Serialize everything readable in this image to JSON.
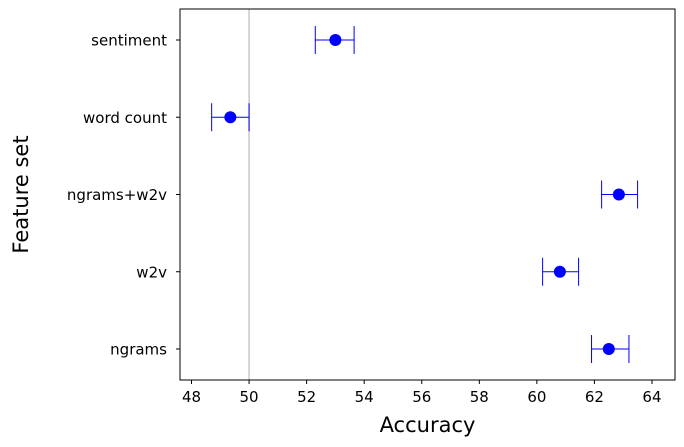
{
  "chart_data": {
    "type": "scatter",
    "xlabel": "Accuracy",
    "ylabel": "Feature set",
    "xlim": [
      47.6,
      64.8
    ],
    "xticks": [
      48,
      50,
      52,
      54,
      56,
      58,
      60,
      62,
      64
    ],
    "categories": [
      "ngrams",
      "w2v",
      "ngrams+w2v",
      "word count",
      "sentiment"
    ],
    "points": [
      {
        "category": "ngrams",
        "value": 62.5,
        "error_low": 61.9,
        "error_high": 63.2
      },
      {
        "category": "w2v",
        "value": 60.8,
        "error_low": 60.2,
        "error_high": 61.45
      },
      {
        "category": "ngrams+w2v",
        "value": 62.85,
        "error_low": 62.25,
        "error_high": 63.5
      },
      {
        "category": "word count",
        "value": 49.35,
        "error_low": 48.7,
        "error_high": 50.0
      },
      {
        "category": "sentiment",
        "value": 53.0,
        "error_low": 52.3,
        "error_high": 53.65
      }
    ],
    "reference_line_x": 50,
    "grid": false,
    "colors": {
      "marker": "#0000ff",
      "errorbar": "#0000ff",
      "reference_line": "#c8c8c8"
    }
  }
}
